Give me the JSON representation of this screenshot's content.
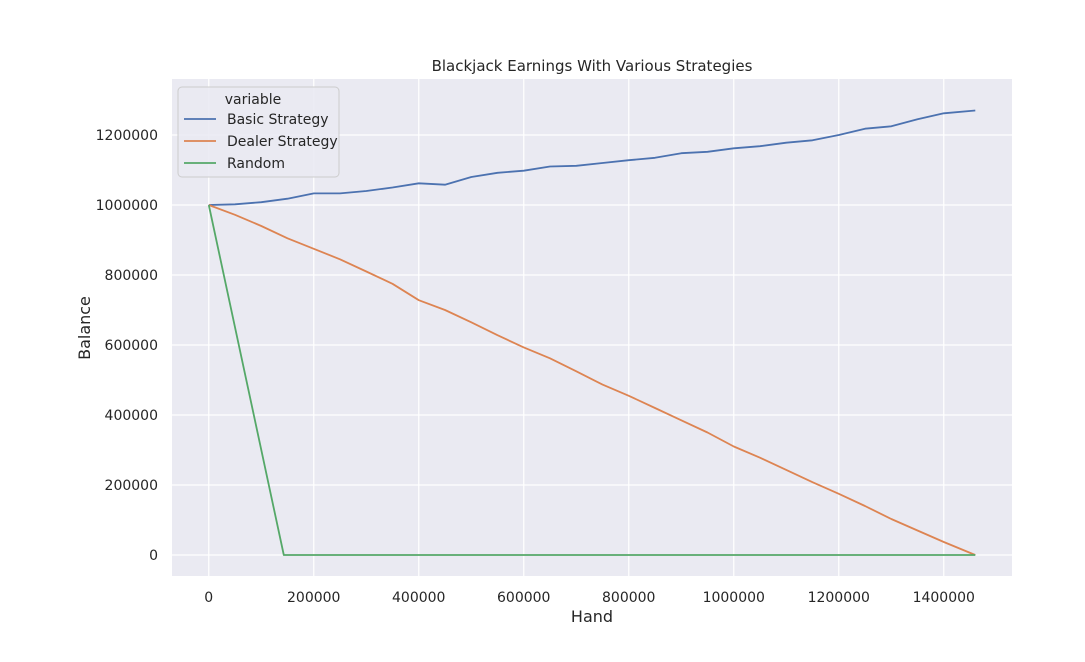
{
  "chart_data": {
    "type": "line",
    "title": "Blackjack Earnings With Various Strategies",
    "xlabel": "Hand",
    "ylabel": "Balance",
    "xlim": [
      -70000,
      1530000
    ],
    "ylim": [
      -60000,
      1360000
    ],
    "xticks": [
      0,
      200000,
      400000,
      600000,
      800000,
      1000000,
      1200000,
      1400000
    ],
    "xtick_labels": [
      "0",
      "200000",
      "400000",
      "600000",
      "800000",
      "1000000",
      "1200000",
      "1400000"
    ],
    "yticks": [
      0,
      200000,
      400000,
      600000,
      800000,
      1000000,
      1200000
    ],
    "ytick_labels": [
      "0",
      "200000",
      "400000",
      "600000",
      "800000",
      "1000000",
      "1200000"
    ],
    "grid": true,
    "background": "#EAEAF2",
    "grid_color": "#FFFFFF",
    "legend": {
      "title": "variable",
      "position": "upper left"
    },
    "series": [
      {
        "name": "Basic Strategy",
        "color": "#4C72B0",
        "x": [
          0,
          50000,
          100000,
          150000,
          200000,
          250000,
          300000,
          350000,
          400000,
          450000,
          500000,
          550000,
          600000,
          650000,
          700000,
          750000,
          800000,
          850000,
          900000,
          950000,
          1000000,
          1050000,
          1100000,
          1150000,
          1200000,
          1250000,
          1300000,
          1350000,
          1400000,
          1460000
        ],
        "y": [
          1000000,
          1002000,
          1008000,
          1018000,
          1033000,
          1033000,
          1040000,
          1050000,
          1062000,
          1058000,
          1080000,
          1092000,
          1098000,
          1110000,
          1112000,
          1120000,
          1128000,
          1135000,
          1148000,
          1152000,
          1162000,
          1168000,
          1178000,
          1185000,
          1200000,
          1218000,
          1225000,
          1245000,
          1262000,
          1270000
        ]
      },
      {
        "name": "Dealer Strategy",
        "color": "#DD8452",
        "x": [
          0,
          50000,
          100000,
          150000,
          200000,
          250000,
          300000,
          350000,
          400000,
          450000,
          500000,
          550000,
          600000,
          650000,
          700000,
          750000,
          800000,
          850000,
          900000,
          950000,
          1000000,
          1050000,
          1100000,
          1150000,
          1200000,
          1250000,
          1300000,
          1350000,
          1400000,
          1460000
        ],
        "y": [
          1000000,
          972000,
          940000,
          905000,
          875000,
          845000,
          810000,
          775000,
          728000,
          700000,
          665000,
          628000,
          593000,
          562000,
          525000,
          487000,
          455000,
          420000,
          385000,
          350000,
          310000,
          278000,
          243000,
          208000,
          175000,
          140000,
          103000,
          70000,
          37000,
          0
        ]
      },
      {
        "name": "Random",
        "color": "#55A868",
        "x": [
          0,
          143000,
          1460000
        ],
        "y": [
          1000000,
          0,
          0
        ]
      }
    ]
  }
}
